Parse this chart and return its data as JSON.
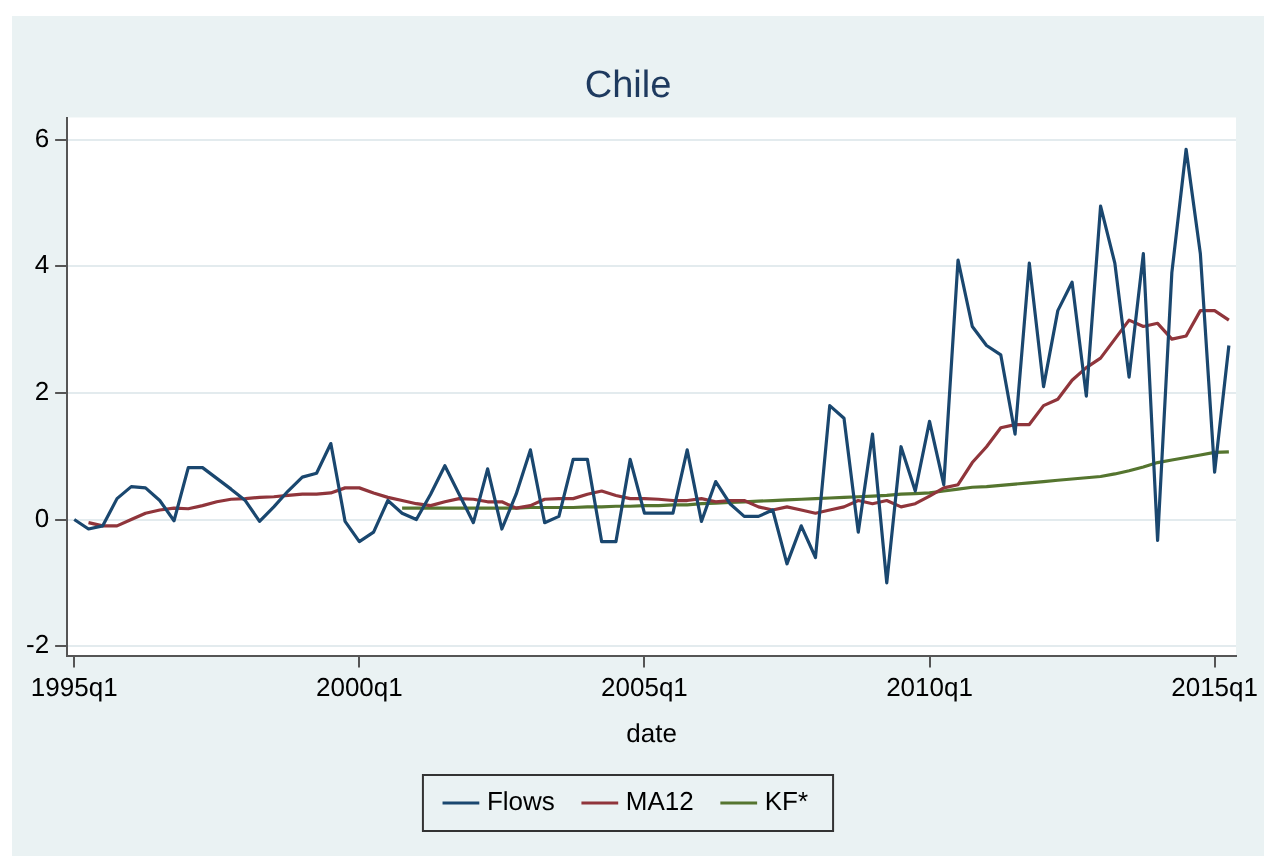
{
  "chart_data": {
    "type": "line",
    "title": "Chile",
    "xlabel": "date",
    "categories": [
      "1995q1",
      null,
      null,
      null,
      null,
      null,
      null,
      null,
      null,
      null,
      null,
      null,
      null,
      null,
      null,
      null,
      null,
      null,
      null,
      null,
      "2000q1",
      null,
      null,
      null,
      null,
      null,
      null,
      null,
      null,
      null,
      null,
      null,
      null,
      null,
      null,
      null,
      null,
      null,
      null,
      null,
      "2005q1",
      null,
      null,
      null,
      null,
      null,
      null,
      null,
      null,
      null,
      null,
      null,
      null,
      null,
      null,
      null,
      null,
      null,
      null,
      null,
      "2010q1",
      null,
      null,
      null,
      null,
      null,
      null,
      null,
      null,
      null,
      null,
      null,
      null,
      null,
      null,
      null,
      null,
      null,
      null,
      null,
      "2015q1",
      null
    ],
    "ylim": [
      -2.15,
      6.35
    ],
    "yticks": [
      -2,
      0,
      2,
      4,
      6
    ],
    "grid": "y",
    "legend": "bottom",
    "marker": "none",
    "line_style": "solid",
    "series": [
      {
        "name": "Flows",
        "color": "#1a476f",
        "values": [
          0,
          -0.15,
          -0.1,
          0.33,
          0.52,
          0.5,
          0.3,
          -0.02,
          0.82,
          0.82,
          0.65,
          0.48,
          0.3,
          -0.03,
          0.2,
          0.45,
          0.67,
          0.73,
          1.2,
          -0.03,
          -0.35,
          -0.2,
          0.3,
          0.1,
          0,
          0.4,
          0.85,
          0.4,
          -0.05,
          0.8,
          -0.15,
          0.4,
          1.1,
          -0.05,
          0.05,
          0.95,
          0.95,
          -0.35,
          -0.35,
          0.95,
          0.1,
          0.1,
          0.1,
          1.1,
          -0.03,
          0.6,
          0.25,
          0.05,
          0.05,
          0.15,
          -0.7,
          -0.1,
          -0.6,
          1.8,
          1.6,
          -0.2,
          1.35,
          -1.0,
          1.15,
          0.45,
          1.55,
          0.55,
          4.1,
          3.05,
          2.75,
          2.6,
          1.35,
          4.05,
          2.1,
          3.3,
          3.75,
          1.95,
          4.95,
          4.05,
          2.25,
          4.2,
          -0.33,
          3.9,
          5.85,
          4.2,
          0.75,
          2.75
        ]
      },
      {
        "name": "MA12",
        "color": "#90353b",
        "values": [
          null,
          -0.05,
          -0.1,
          -0.1,
          0,
          0.1,
          0.15,
          0.18,
          0.17,
          0.22,
          0.28,
          0.32,
          0.33,
          0.35,
          0.36,
          0.38,
          0.4,
          0.4,
          0.42,
          0.5,
          0.5,
          0.42,
          0.35,
          0.3,
          0.25,
          0.22,
          0.28,
          0.33,
          0.32,
          0.28,
          0.28,
          0.18,
          0.22,
          0.32,
          0.33,
          0.33,
          0.4,
          0.45,
          0.38,
          0.33,
          0.33,
          0.32,
          0.3,
          0.3,
          0.33,
          0.28,
          0.3,
          0.3,
          0.2,
          0.15,
          0.2,
          0.15,
          0.1,
          0.15,
          0.2,
          0.3,
          0.25,
          0.3,
          0.2,
          0.25,
          0.37,
          0.5,
          0.55,
          0.9,
          1.15,
          1.45,
          1.5,
          1.5,
          1.8,
          1.9,
          2.2,
          2.4,
          2.55,
          2.85,
          3.15,
          3.05,
          3.1,
          2.85,
          2.9,
          3.3,
          3.3,
          3.15
        ]
      },
      {
        "name": "KF*",
        "color": "#55752f",
        "values": [
          null,
          null,
          null,
          null,
          null,
          null,
          null,
          null,
          null,
          null,
          null,
          null,
          null,
          null,
          null,
          null,
          null,
          null,
          null,
          null,
          null,
          null,
          null,
          0.18,
          0.18,
          0.18,
          0.18,
          0.18,
          0.18,
          0.18,
          0.18,
          0.18,
          0.19,
          0.19,
          0.19,
          0.19,
          0.2,
          0.2,
          0.21,
          0.21,
          0.22,
          0.22,
          0.23,
          0.23,
          0.25,
          0.26,
          0.27,
          0.28,
          0.29,
          0.3,
          0.31,
          0.32,
          0.33,
          0.34,
          0.35,
          0.36,
          0.37,
          0.38,
          0.4,
          0.41,
          0.42,
          0.45,
          0.48,
          0.51,
          0.52,
          0.54,
          0.56,
          0.58,
          0.6,
          0.62,
          0.64,
          0.66,
          0.68,
          0.72,
          0.77,
          0.83,
          0.9,
          0.94,
          0.98,
          1.02,
          1.06,
          1.07
        ]
      }
    ]
  }
}
